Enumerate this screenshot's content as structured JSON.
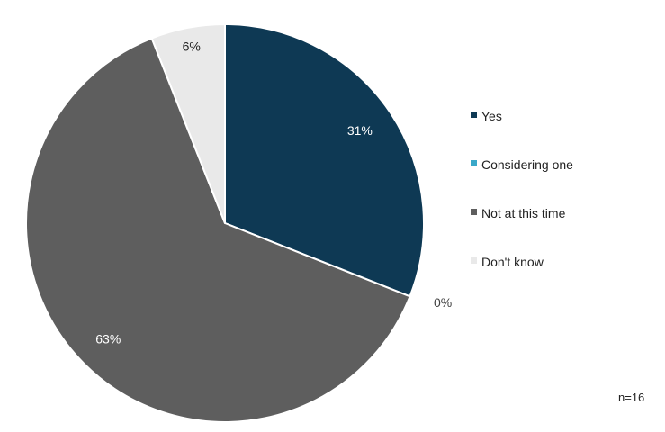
{
  "chart_data": {
    "type": "pie",
    "slices": [
      {
        "label": "Yes",
        "value": 31,
        "value_label": "31%",
        "color": "#0e3954",
        "label_color": "#ffffff"
      },
      {
        "label": "Considering one",
        "value": 0,
        "value_label": "0%",
        "color": "#3aa8c9",
        "label_color": "#404040"
      },
      {
        "label": "Not at this time",
        "value": 63,
        "value_label": "63%",
        "color": "#5e5e5e",
        "label_color": "#ffffff"
      },
      {
        "label": "Don't know",
        "value": 6,
        "value_label": "6%",
        "color": "#e9e9e9",
        "label_color": "#222222"
      }
    ],
    "legend_position": "right",
    "start_angle": "12 o'clock, clockwise"
  },
  "legend": {
    "items": [
      {
        "label": "Yes",
        "color": "#0e3954"
      },
      {
        "label": "Considering one",
        "color": "#3aa8c9"
      },
      {
        "label": "Not at this time",
        "color": "#5e5e5e"
      },
      {
        "label": "Don't know",
        "color": "#e9e9e9"
      }
    ]
  },
  "footnote": "n=16"
}
